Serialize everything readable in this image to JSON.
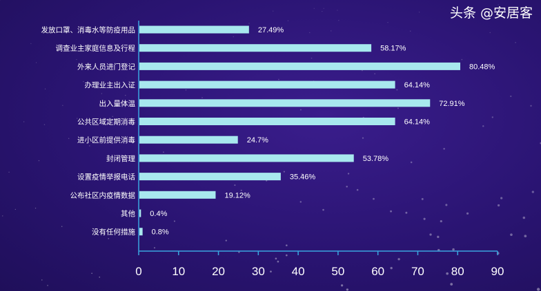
{
  "chart_data": {
    "type": "bar",
    "orientation": "horizontal",
    "categories": [
      "发放口罩、消毒水等防疫用品",
      "调查业主家庭信息及行程",
      "外来人员进门登记",
      "办理业主出入证",
      "出入量体温",
      "公共区域定期消毒",
      "进小区前提供消毒",
      "封闭管理",
      "设置疫情举报电话",
      "公布社区内疫情数据",
      "其他",
      "没有任何措施"
    ],
    "values": [
      27.49,
      58.17,
      80.48,
      64.14,
      72.91,
      64.14,
      24.7,
      53.78,
      35.46,
      19.12,
      0.4,
      0.8
    ],
    "data_labels": [
      "27.49%",
      "58.17%",
      "80.48%",
      "64.14%",
      "72.91%",
      "64.14%",
      "24.7%",
      "53.78%",
      "35.46%",
      "19.12%",
      "0.4%",
      "0.8%"
    ],
    "xlim": [
      0,
      90
    ],
    "xticks": [
      0,
      10,
      20,
      30,
      40,
      50,
      60,
      70,
      80,
      90
    ],
    "grid": false,
    "colors": {
      "bar": "#a8e8ee",
      "axis": "#3aa6e0",
      "text": "#ffffff",
      "background": "#2a1472"
    }
  },
  "watermark": "头条 @安居客"
}
